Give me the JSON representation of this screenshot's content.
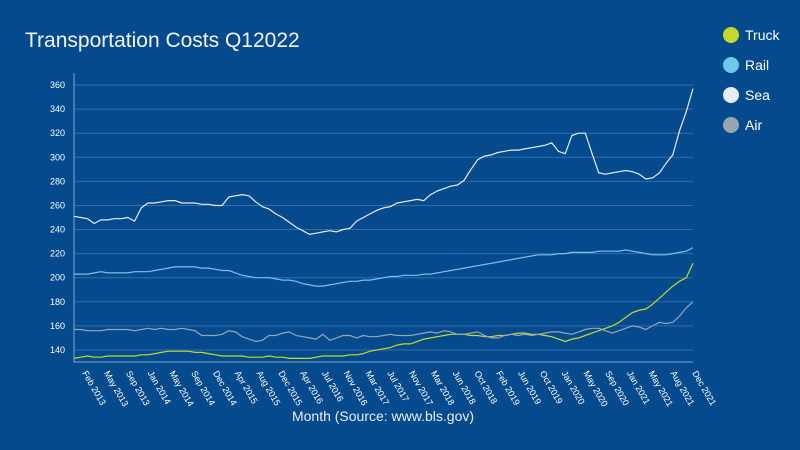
{
  "chart_data": {
    "type": "line",
    "title": "Transportation Costs Q12022",
    "xlabel": "Month (Source: www.bls.gov)",
    "ylabel": "",
    "ylim": [
      130,
      370
    ],
    "yticks": [
      140,
      160,
      180,
      200,
      220,
      240,
      260,
      280,
      300,
      320,
      340,
      360
    ],
    "grid": true,
    "legend_position": "right",
    "x_tick_labels": [
      "Feb 2013",
      "May 2013",
      "Sep 2013",
      "Jan 2014",
      "May 2014",
      "Sep 2014",
      "Dec 2014",
      "Apr 2015",
      "Aug 2015",
      "Dec 2015",
      "Apr 2016",
      "Jul 2016",
      "Nov 2016",
      "Mar 2017",
      "Jul 2017",
      "Nov 2017",
      "Mar 2018",
      "Jun 2018",
      "Oct 2018",
      "Feb 2019",
      "Jun 2019",
      "Oct 2019",
      "Jan 2020",
      "May 2020",
      "Sep 2020",
      "Jan 2021",
      "May 2021",
      "Aug 2021",
      "Dec 2021"
    ],
    "series": [
      {
        "name": "Truck",
        "color": "#c5d82e",
        "values": [
          133,
          134,
          135,
          134,
          134,
          135,
          135,
          135,
          135,
          135,
          136,
          136,
          137,
          138,
          139,
          139,
          139,
          139,
          138,
          138,
          137,
          136,
          135,
          135,
          135,
          135,
          134,
          134,
          134,
          135,
          134,
          134,
          133,
          133,
          133,
          133,
          134,
          135,
          135,
          135,
          135,
          136,
          136,
          137,
          139,
          140,
          141,
          142,
          144,
          145,
          145,
          147,
          149,
          150,
          151,
          152,
          153,
          153,
          153,
          152,
          152,
          151,
          151,
          152,
          152,
          153,
          154,
          154,
          153,
          153,
          152,
          151,
          149,
          147,
          149,
          150,
          152,
          154,
          156,
          158,
          160,
          163,
          167,
          171,
          173,
          174,
          178,
          183,
          188,
          193,
          197,
          200,
          212
        ]
      },
      {
        "name": "Rail",
        "color": "#6fc7ea",
        "values": [
          203,
          203,
          203,
          204,
          205,
          204,
          204,
          204,
          204,
          205,
          205,
          205,
          206,
          207,
          208,
          209,
          209,
          209,
          209,
          208,
          208,
          207,
          206,
          206,
          204,
          202,
          201,
          200,
          200,
          200,
          199,
          198,
          198,
          197,
          195,
          194,
          193,
          193,
          194,
          195,
          196,
          197,
          197,
          198,
          198,
          199,
          200,
          201,
          201,
          202,
          202,
          202,
          203,
          203,
          204,
          205,
          206,
          207,
          208,
          209,
          210,
          211,
          212,
          213,
          214,
          215,
          216,
          217,
          218,
          219,
          219,
          219,
          220,
          220,
          221,
          221,
          221,
          221,
          222,
          222,
          222,
          222,
          223,
          222,
          221,
          220,
          219,
          219,
          219,
          220,
          221,
          222,
          225
        ]
      },
      {
        "name": "Sea",
        "color": "#e6ecf1",
        "values": [
          251,
          250,
          249,
          245,
          248,
          248,
          249,
          249,
          250,
          247,
          258,
          262,
          262,
          263,
          264,
          264,
          262,
          262,
          262,
          261,
          261,
          260,
          260,
          267,
          268,
          269,
          268,
          263,
          259,
          257,
          253,
          250,
          246,
          242,
          239,
          236,
          237,
          238,
          239,
          238,
          240,
          241,
          247,
          250,
          253,
          256,
          258,
          259,
          262,
          263,
          264,
          265,
          264,
          269,
          272,
          274,
          276,
          277,
          281,
          290,
          298,
          301,
          302,
          304,
          305,
          306,
          306,
          307,
          308,
          309,
          310,
          312,
          305,
          303,
          318,
          320,
          320,
          303,
          287,
          286,
          287,
          288,
          289,
          288,
          286,
          282,
          283,
          287,
          295,
          302,
          322,
          338,
          357
        ]
      },
      {
        "name": "Air",
        "color": "#9aa5b3",
        "values": [
          157,
          157,
          156,
          156,
          156,
          157,
          157,
          157,
          157,
          156,
          157,
          158,
          157,
          158,
          157,
          157,
          158,
          157,
          156,
          152,
          152,
          152,
          153,
          156,
          155,
          151,
          149,
          147,
          148,
          152,
          152,
          154,
          155,
          152,
          151,
          150,
          149,
          153,
          148,
          150,
          152,
          152,
          150,
          152,
          151,
          151,
          152,
          153,
          152,
          152,
          152,
          153,
          154,
          155,
          154,
          156,
          155,
          153,
          153,
          154,
          155,
          152,
          150,
          150,
          152,
          153,
          152,
          153,
          152,
          153,
          154,
          155,
          155,
          154,
          153,
          155,
          157,
          158,
          158,
          156,
          154,
          156,
          158,
          160,
          159,
          157,
          160,
          163,
          162,
          163,
          168,
          175,
          180
        ]
      }
    ]
  }
}
